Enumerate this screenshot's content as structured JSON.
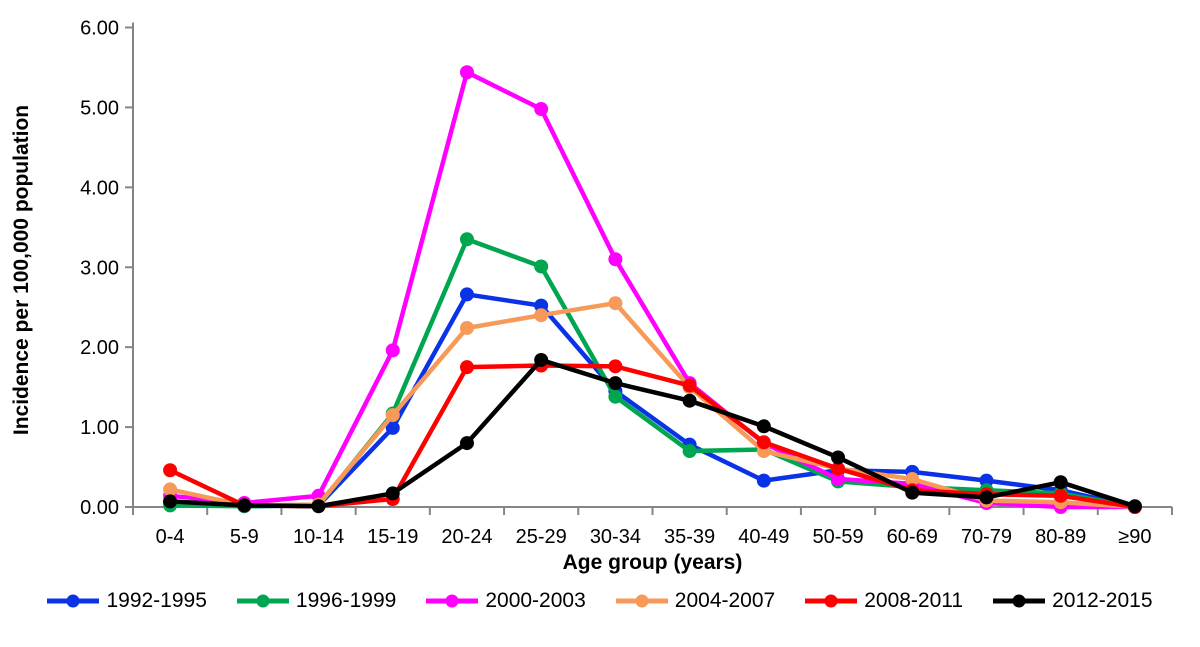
{
  "chart_data": {
    "type": "line",
    "title": "",
    "xlabel": "Age group (years)",
    "ylabel": "Incidence per 100,000 population",
    "ylim": [
      0,
      6
    ],
    "ytick_labels": [
      "0.00",
      "1.00",
      "2.00",
      "3.00",
      "4.00",
      "5.00",
      "6.00"
    ],
    "grid": false,
    "legend_position": "bottom",
    "axis_color": "#858585",
    "text_color": "#000000",
    "categories": [
      "0-4",
      "5-9",
      "10-14",
      "15-19",
      "20-24",
      "25-29",
      "30-34",
      "35-39",
      "40-49",
      "50-59",
      "60-69",
      "70-79",
      "80-89",
      "≥90"
    ],
    "series": [
      {
        "name": "1992-1995",
        "color": "#0A33E8",
        "values": [
          0.06,
          0.01,
          0.02,
          0.99,
          2.66,
          2.52,
          1.45,
          0.78,
          0.33,
          0.46,
          0.44,
          0.33,
          0.21,
          0.0
        ]
      },
      {
        "name": "1996-1999",
        "color": "#00A54F",
        "values": [
          0.02,
          0.01,
          0.02,
          1.17,
          3.35,
          3.01,
          1.38,
          0.7,
          0.72,
          0.32,
          0.25,
          0.21,
          0.17,
          0.0
        ]
      },
      {
        "name": "2000-2003",
        "color": "#FF00FF",
        "values": [
          0.14,
          0.05,
          0.14,
          1.96,
          5.44,
          4.98,
          3.1,
          1.55,
          0.8,
          0.35,
          0.29,
          0.05,
          0.0,
          0.0
        ]
      },
      {
        "name": "2004-2007",
        "color": "#F79A59",
        "values": [
          0.22,
          0.02,
          0.03,
          1.15,
          2.24,
          2.4,
          2.55,
          1.5,
          0.7,
          0.48,
          0.35,
          0.08,
          0.06,
          0.0
        ]
      },
      {
        "name": "2008-2011",
        "color": "#FE0000",
        "values": [
          0.46,
          0.02,
          0.01,
          0.1,
          1.75,
          1.77,
          1.76,
          1.52,
          0.81,
          0.48,
          0.21,
          0.16,
          0.14,
          0.0
        ]
      },
      {
        "name": "2012-2015",
        "color": "#000000",
        "values": [
          0.07,
          0.02,
          0.01,
          0.17,
          0.8,
          1.84,
          1.55,
          1.33,
          1.01,
          0.62,
          0.18,
          0.12,
          0.31,
          0.01
        ]
      }
    ]
  }
}
